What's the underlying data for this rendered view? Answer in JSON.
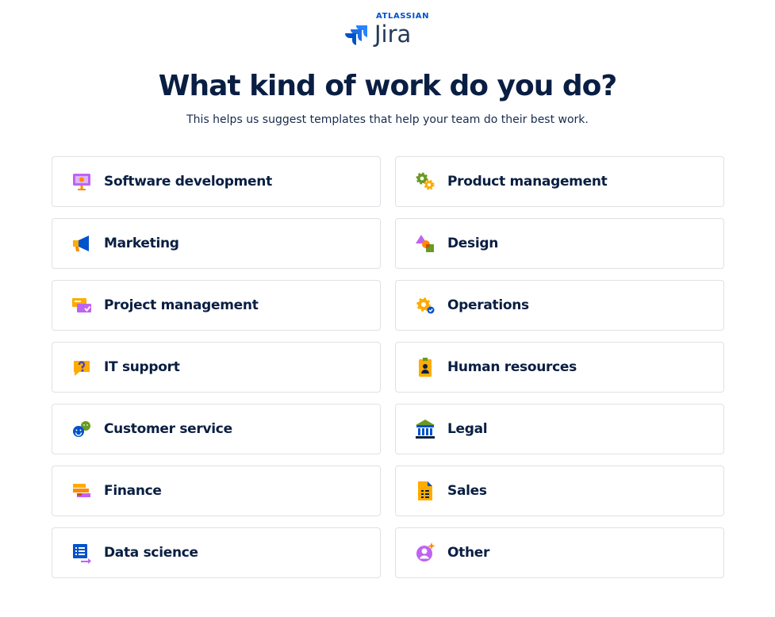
{
  "header": {
    "brand": "ATLASSIAN",
    "product": "Jira",
    "logo_icon": "jira-logo-icon"
  },
  "main": {
    "title": "What kind of work do you do?",
    "subtitle": "This helps us suggest templates that help your team do their best work."
  },
  "options": [
    {
      "label": "Software development",
      "icon": "monitor-icon"
    },
    {
      "label": "Product management",
      "icon": "gears-icon"
    },
    {
      "label": "Marketing",
      "icon": "megaphone-icon"
    },
    {
      "label": "Design",
      "icon": "shapes-icon"
    },
    {
      "label": "Project management",
      "icon": "cards-icon"
    },
    {
      "label": "Operations",
      "icon": "gear-check-icon"
    },
    {
      "label": "IT support",
      "icon": "question-bubble-icon"
    },
    {
      "label": "Human resources",
      "icon": "id-badge-icon"
    },
    {
      "label": "Customer service",
      "icon": "smiley-bubbles-icon"
    },
    {
      "label": "Legal",
      "icon": "courthouse-icon"
    },
    {
      "label": "Finance",
      "icon": "stacked-bars-icon"
    },
    {
      "label": "Sales",
      "icon": "document-chart-icon"
    },
    {
      "label": "Data science",
      "icon": "list-card-icon"
    },
    {
      "label": "Other",
      "icon": "person-sparkle-icon"
    }
  ],
  "colors": {
    "accent_blue": "#0052cc",
    "title": "#091e42",
    "card_border": "#dfe1e6"
  }
}
